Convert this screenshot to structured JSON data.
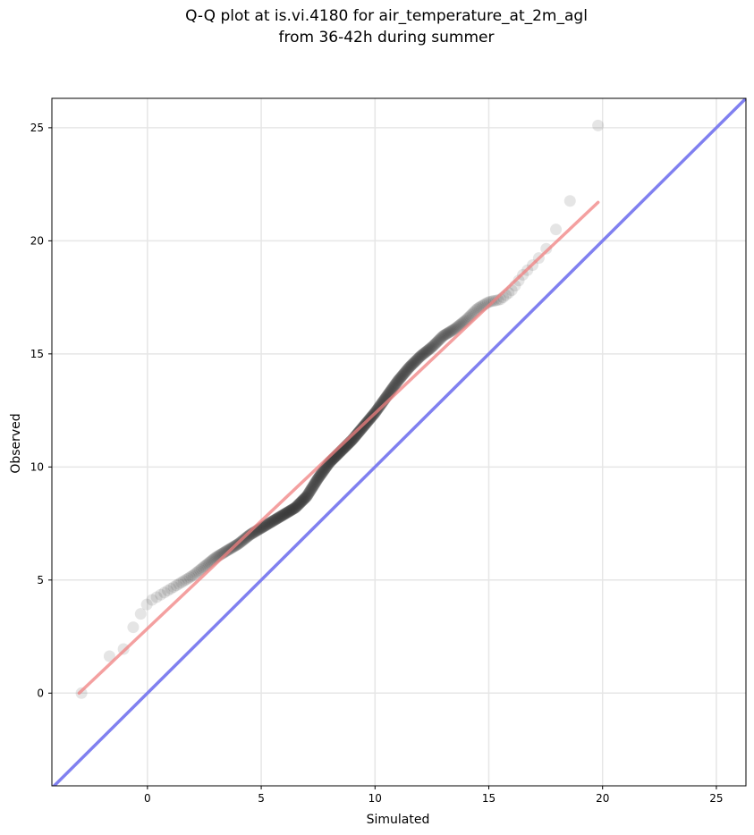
{
  "chart_data": {
    "type": "scatter",
    "title_lines": [
      "Q-Q plot at is.vi.4180 for air_temperature_at_2m_agl",
      "from 36-42h during summer"
    ],
    "xlabel": "Simulated",
    "ylabel": "Observed",
    "xlim": [
      -4.2,
      26.3
    ],
    "ylim": [
      -4.1,
      26.3
    ],
    "xticks": [
      0,
      5,
      10,
      15,
      20,
      25
    ],
    "yticks": [
      0,
      5,
      10,
      15,
      20,
      25
    ],
    "grid": true,
    "colors": {
      "points": "#333333",
      "fit_line": "#f08080",
      "identity_line": "#8080f0",
      "grid": "#e6e6e6"
    },
    "identity_line": [
      [
        -4.2,
        -4.2
      ],
      [
        26.3,
        26.3
      ]
    ],
    "fit_line": [
      [
        -3.0,
        0.0
      ],
      [
        19.8,
        21.7
      ]
    ],
    "quantile_anchors": [
      [
        -2.9,
        0.0
      ],
      [
        -2.7,
        0.0
      ],
      [
        -2.6,
        0.1
      ],
      [
        -2.5,
        1.3
      ],
      [
        -2.3,
        1.4
      ],
      [
        -2.0,
        1.5
      ],
      [
        -1.5,
        1.7
      ],
      [
        -1.2,
        1.8
      ],
      [
        -1.0,
        2.0
      ],
      [
        -0.8,
        2.3
      ],
      [
        -0.6,
        3.0
      ],
      [
        -0.4,
        3.4
      ],
      [
        -0.1,
        3.7
      ],
      [
        0.0,
        4.0
      ],
      [
        0.5,
        4.3
      ],
      [
        1.0,
        4.6
      ],
      [
        1.5,
        4.9
      ],
      [
        2.0,
        5.2
      ],
      [
        2.5,
        5.6
      ],
      [
        3.0,
        6.0
      ],
      [
        3.5,
        6.3
      ],
      [
        4.0,
        6.6
      ],
      [
        4.5,
        7.0
      ],
      [
        5.0,
        7.3
      ],
      [
        5.5,
        7.6
      ],
      [
        6.0,
        7.9
      ],
      [
        6.5,
        8.2
      ],
      [
        7.0,
        8.7
      ],
      [
        7.5,
        9.5
      ],
      [
        8.0,
        10.2
      ],
      [
        8.5,
        10.7
      ],
      [
        9.0,
        11.2
      ],
      [
        9.5,
        11.8
      ],
      [
        10.0,
        12.4
      ],
      [
        10.5,
        13.1
      ],
      [
        11.0,
        13.8
      ],
      [
        11.5,
        14.4
      ],
      [
        12.0,
        14.9
      ],
      [
        12.5,
        15.3
      ],
      [
        13.0,
        15.8
      ],
      [
        13.5,
        16.1
      ],
      [
        14.0,
        16.5
      ],
      [
        14.5,
        17.0
      ],
      [
        15.0,
        17.3
      ],
      [
        15.5,
        17.4
      ],
      [
        16.0,
        17.8
      ],
      [
        16.5,
        18.5
      ],
      [
        17.0,
        19.0
      ],
      [
        17.5,
        19.6
      ],
      [
        18.0,
        20.6
      ],
      [
        18.5,
        21.6
      ],
      [
        19.0,
        22.8
      ],
      [
        19.4,
        24.0
      ],
      [
        19.8,
        25.1
      ]
    ],
    "point_count": 560
  }
}
